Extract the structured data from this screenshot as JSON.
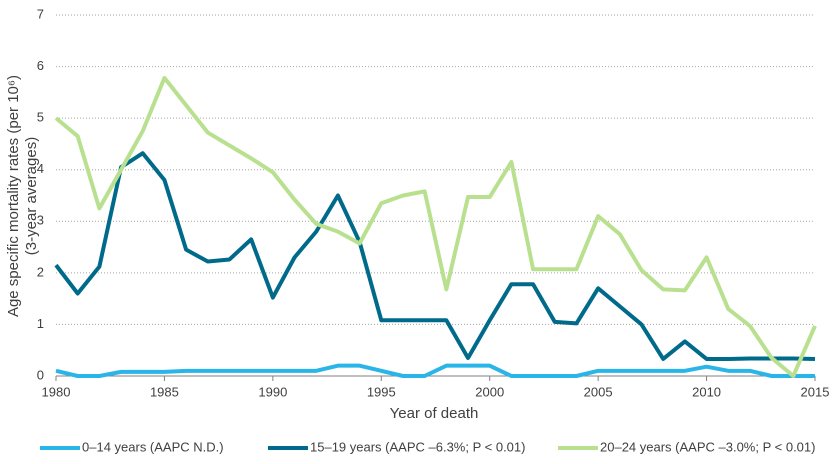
{
  "chart_data": {
    "type": "line",
    "y_label_lines": [
      "Age specific mortality rates (per 10⁶)",
      "(3-year averages)"
    ],
    "x_label": "Year of death",
    "x": [
      1980,
      1981,
      1982,
      1983,
      1984,
      1985,
      1986,
      1987,
      1988,
      1989,
      1990,
      1991,
      1992,
      1993,
      1994,
      1995,
      1996,
      1997,
      1998,
      1999,
      2000,
      2001,
      2002,
      2003,
      2004,
      2005,
      2006,
      2007,
      2008,
      2009,
      2010,
      2011,
      2012,
      2013,
      2014,
      2015
    ],
    "series": [
      {
        "name": "0–14 years (AAPC N.D.)",
        "color": "#29b5e8",
        "values": [
          0.1,
          0,
          0,
          0.08,
          0.08,
          0.08,
          0.1,
          0.1,
          0.1,
          0.1,
          0.1,
          0.1,
          0.1,
          0.2,
          0.2,
          0.1,
          0,
          0,
          0.2,
          0.2,
          0.2,
          0,
          0,
          0,
          0,
          0.1,
          0.1,
          0.1,
          0.1,
          0.1,
          0.18,
          0.1,
          0.1,
          0,
          0,
          0
        ]
      },
      {
        "name": "15–19 years (AAPC –6.3%; P < 0.01)",
        "color": "#006a8a",
        "values": [
          2.15,
          1.6,
          2.12,
          4.05,
          4.32,
          3.8,
          2.45,
          2.22,
          2.26,
          2.65,
          1.52,
          2.3,
          2.8,
          3.5,
          2.6,
          1.08,
          1.08,
          1.08,
          1.08,
          0.35,
          1.08,
          1.78,
          1.78,
          1.05,
          1.02,
          1.7,
          1.35,
          1.0,
          0.33,
          0.67,
          0.33,
          0.33,
          0.34,
          0.34,
          0.34,
          0.33
        ]
      },
      {
        "name": "20–24 years (AAPC –3.0%; P < 0.01)",
        "color": "#b9e08f",
        "values": [
          5.0,
          4.65,
          3.25,
          4.0,
          4.75,
          5.78,
          5.25,
          4.72,
          4.47,
          4.22,
          3.95,
          3.42,
          2.95,
          2.8,
          2.57,
          3.35,
          3.5,
          3.58,
          1.68,
          3.47,
          3.47,
          4.15,
          2.07,
          2.07,
          2.07,
          3.1,
          2.75,
          2.05,
          1.68,
          1.66,
          2.3,
          1.3,
          0.97,
          0.35,
          0,
          0.97
        ]
      }
    ],
    "xlim": [
      1980,
      2015
    ],
    "xticks": [
      1980,
      1985,
      1990,
      1995,
      2000,
      2005,
      2010,
      2015
    ],
    "ylim": [
      0,
      7
    ],
    "yticks": [
      0,
      1,
      2,
      3,
      4,
      5,
      6,
      7
    ],
    "grid": true,
    "legend": "bottom"
  }
}
